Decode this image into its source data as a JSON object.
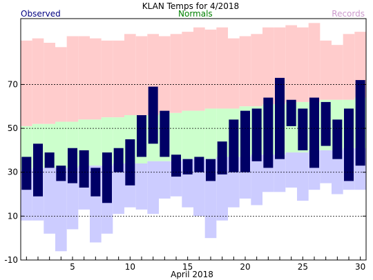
{
  "chart_data": {
    "type": "bar",
    "title": "KLAN Temps for 4/2018",
    "legend": {
      "observed": "Observed",
      "normals": "Normals",
      "records": "Records"
    },
    "xlabel": "April 2018",
    "ylabel": "",
    "xlim": [
      0.5,
      30.5
    ],
    "ylim": [
      -10,
      100
    ],
    "yticks": [
      -10,
      10,
      30,
      50,
      70
    ],
    "xticks": [
      5,
      10,
      15,
      20,
      25,
      30
    ],
    "grid": "dashed horizontal at 10, 30, 50, 70",
    "days": [
      1,
      2,
      3,
      4,
      5,
      6,
      7,
      8,
      9,
      10,
      11,
      12,
      13,
      14,
      15,
      16,
      17,
      18,
      19,
      20,
      21,
      22,
      23,
      24,
      25,
      26,
      27,
      28,
      29,
      30
    ],
    "observed_high": [
      37,
      43,
      39,
      33,
      41,
      40,
      32,
      39,
      41,
      45,
      56,
      69,
      58,
      38,
      36,
      37,
      36,
      44,
      54,
      58,
      59,
      64,
      73,
      63,
      59,
      64,
      62,
      54,
      59,
      72
    ],
    "observed_low": [
      22,
      19,
      32,
      26,
      25,
      23,
      19,
      16,
      30,
      24,
      37,
      43,
      37,
      28,
      29,
      30,
      26,
      29,
      30,
      30,
      35,
      32,
      36,
      51,
      40,
      32,
      42,
      36,
      26,
      33
    ],
    "normal_high": [
      51,
      52,
      52,
      53,
      53,
      54,
      54,
      55,
      55,
      56,
      56,
      56,
      57,
      57,
      58,
      58,
      59,
      59,
      59,
      60,
      60,
      61,
      61,
      62,
      62,
      62,
      63,
      63,
      63,
      64
    ],
    "normal_low": [
      31,
      32,
      32,
      32,
      32,
      33,
      33,
      33,
      34,
      34,
      34,
      35,
      35,
      35,
      36,
      36,
      36,
      37,
      37,
      37,
      38,
      38,
      38,
      39,
      39,
      40,
      40,
      40,
      41,
      41
    ],
    "record_high": [
      90,
      91,
      89,
      87,
      92,
      92,
      91,
      90,
      90,
      93,
      92,
      93,
      92,
      93,
      94,
      96,
      95,
      96,
      91,
      92,
      93,
      96,
      96,
      97,
      96,
      98,
      90,
      88,
      93,
      94
    ],
    "record_low": [
      8,
      8,
      2,
      -6,
      4,
      13,
      -2,
      2,
      11,
      14,
      13,
      11,
      18,
      19,
      14,
      10,
      0,
      8,
      14,
      18,
      15,
      21,
      21,
      23,
      17,
      22,
      25,
      20,
      22,
      22
    ],
    "colors": {
      "observed": "#000066",
      "normals": "#ccffcc",
      "records_high": "#ffcccc",
      "records_low": "#ccccff",
      "observed_legend": "#000080",
      "normals_legend": "#008000",
      "records_legend": "#cc99cc"
    }
  }
}
